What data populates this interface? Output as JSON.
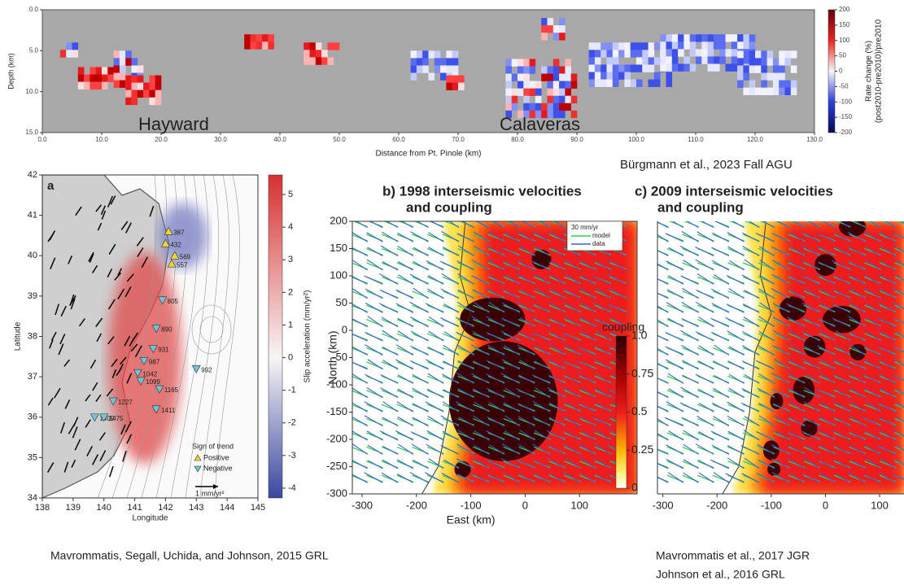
{
  "top_panel": {
    "xlabel": "Distance from Pt. Pinole (km)",
    "ylabel": "Depth (km)",
    "xlim": [
      0,
      130
    ],
    "xticks": [
      {
        "value": 0,
        "label": "0.0"
      },
      {
        "value": 10,
        "label": "10.0"
      },
      {
        "value": 20,
        "label": "20.0"
      },
      {
        "value": 30,
        "label": "30.0"
      },
      {
        "value": 40,
        "label": "40.0"
      },
      {
        "value": 50,
        "label": "50.0"
      },
      {
        "value": 60,
        "label": "60.0"
      },
      {
        "value": 70,
        "label": "70.0"
      },
      {
        "value": 80,
        "label": "80.0"
      },
      {
        "value": 90,
        "label": "90.0"
      },
      {
        "value": 100,
        "label": "100.0"
      },
      {
        "value": 110,
        "label": "110.0"
      },
      {
        "value": 120,
        "label": "120.0"
      },
      {
        "value": 130,
        "label": "130.0"
      }
    ],
    "ylim": [
      0,
      15
    ],
    "yticks": [
      {
        "value": 0,
        "label": "0.0"
      },
      {
        "value": 5,
        "label": "5.0"
      },
      {
        "value": 10,
        "label": "10.0"
      },
      {
        "value": 15,
        "label": "15.0"
      }
    ],
    "colorbar": {
      "label_lines": [
        "Rate change (%)",
        "(post2010-pre2010)/pre2010"
      ],
      "lim": [
        -200,
        200
      ],
      "ticks": [
        200,
        150,
        100,
        50,
        0,
        -50,
        -100,
        -150,
        -200
      ]
    },
    "annotations": [
      "Hayward",
      "Calaveras"
    ],
    "citation": "Bürgmann et al., 2023 Fall AGU"
  },
  "panel_a": {
    "letter": "a",
    "xlabel": "Longitude",
    "ylabel": "Latitude",
    "xlim": [
      138,
      145
    ],
    "xticks": [
      138,
      139,
      140,
      141,
      142,
      143,
      144,
      145
    ],
    "ylim": [
      34,
      42
    ],
    "yticks": [
      34,
      35,
      36,
      37,
      38,
      39,
      40,
      41,
      42
    ],
    "colorbar": {
      "label": "Slip acceleration (mm/yr²)",
      "lim": [
        -4.3,
        5.6
      ],
      "ticks": [
        5,
        4,
        3,
        2,
        1,
        0,
        -1,
        -2,
        -3,
        -4
      ]
    },
    "stations": [
      "387",
      "432",
      "569",
      "557",
      "805",
      "890",
      "931",
      "987",
      "1042",
      "1099",
      "1165",
      "992",
      "1227",
      "1409",
      "1475",
      "1411"
    ],
    "legend": {
      "title": "Sign of trend",
      "entries": [
        "Positive",
        "Negative"
      ],
      "scale": "1 mm/yr²"
    },
    "citation": "Mavrommatis, Segall, Uchida, and Johnson, 2015 GRL"
  },
  "panel_b": {
    "title_lines": [
      "b) 1998 interseismic velocities",
      "and coupling"
    ],
    "xlabel": "East (km)",
    "ylabel": "North (km)",
    "xlim": [
      -318,
      206
    ],
    "xticks": [
      -300,
      -200,
      -100,
      0,
      100
    ],
    "ylim": [
      -300,
      200
    ],
    "yticks": [
      -300,
      -250,
      -200,
      -150,
      -100,
      -50,
      0,
      50,
      100,
      150,
      200
    ],
    "legend": {
      "scale": "30 mm/yr",
      "entries": [
        "model",
        "data"
      ]
    },
    "colorbar": {
      "label": "coupling",
      "lim": [
        0,
        1
      ],
      "ticks": [
        {
          "value": 1,
          "label": "1.0"
        },
        0.75,
        0.5,
        0.25,
        0
      ]
    }
  },
  "panel_c": {
    "title_lines": [
      "c) 2009 interseismic velocities",
      "and coupling"
    ],
    "xlim": [
      -310,
      145
    ],
    "xticks": [
      -300,
      -200,
      -100,
      0,
      100
    ]
  },
  "citations_right": [
    "Mavrommatis et al., 2017 JGR",
    "Johnson et al., 2016 GRL"
  ]
}
